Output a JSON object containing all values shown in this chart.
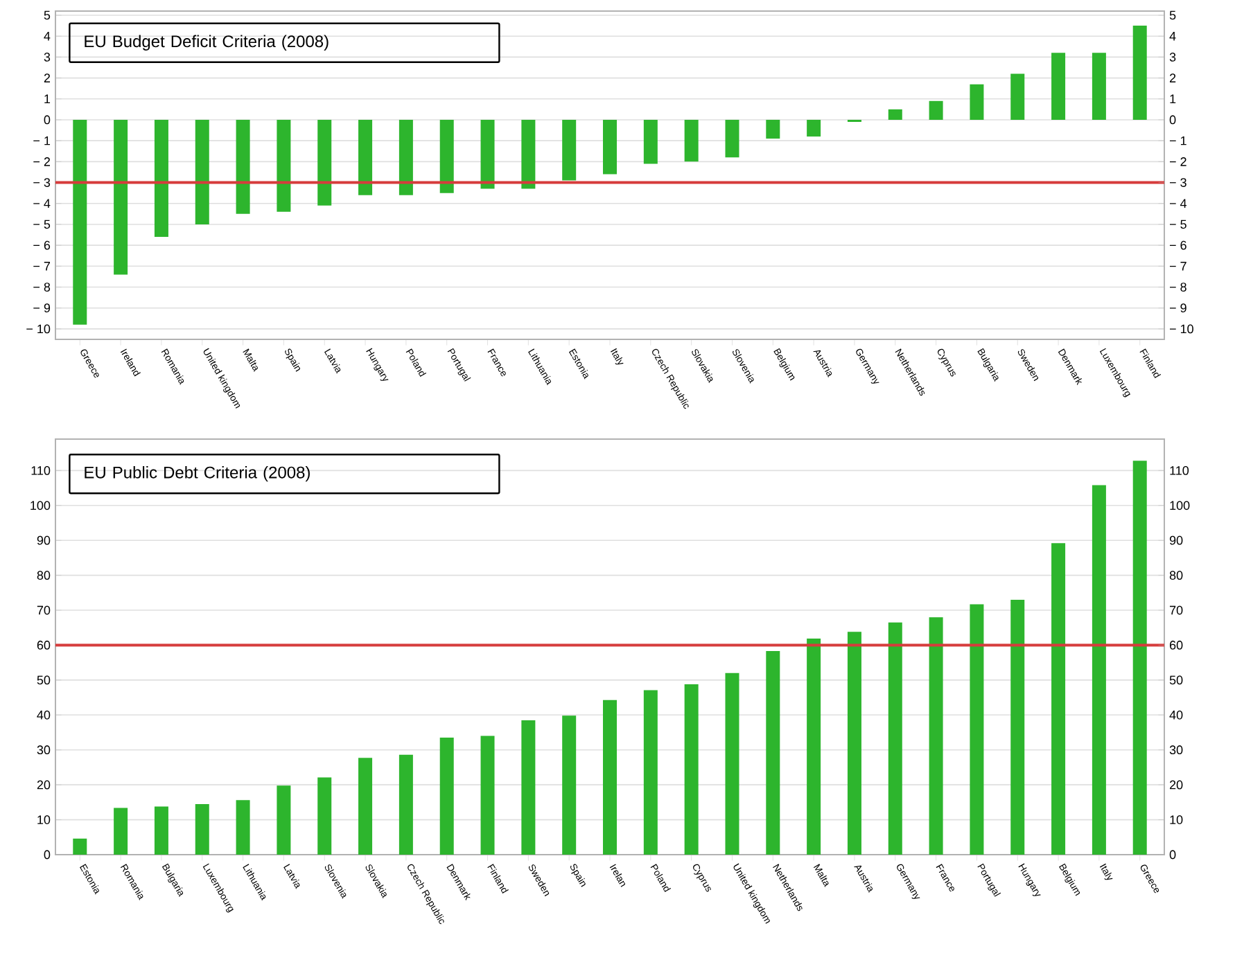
{
  "chart_data": [
    {
      "type": "bar",
      "title": "EU Budget Deficit Criteria (2008)",
      "categories": [
        "Greece",
        "Ireland",
        "Romania",
        "United kingdom",
        "Malta",
        "Spain",
        "Latvia",
        "Hungary",
        "Poland",
        "Portugal",
        "France",
        "Lithuania",
        "Estonia",
        "Italy",
        "Czech Republic",
        "Slovakia",
        "Slovenia",
        "Belgium",
        "Austria",
        "Germany",
        "Netherlands",
        "Cyprus",
        "Bulgaria",
        "Sweden",
        "Denmark",
        "Luxembourg",
        "Finland"
      ],
      "values": [
        -9.8,
        -7.4,
        -5.6,
        -5.0,
        -4.5,
        -4.4,
        -4.1,
        -3.6,
        -3.6,
        -3.5,
        -3.3,
        -3.3,
        -2.9,
        -2.6,
        -2.1,
        -2.0,
        -1.8,
        -0.9,
        -0.8,
        -0.1,
        0.5,
        0.9,
        1.7,
        2.2,
        3.2,
        3.2,
        4.5
      ],
      "color": "#2db52d",
      "grid": "y",
      "ylim": [
        -10.5,
        5.2
      ],
      "yticks": [
        {
          "value": -10,
          "label": "− 10"
        },
        {
          "value": -9,
          "label": "− 9"
        },
        {
          "value": -8,
          "label": "− 8"
        },
        {
          "value": -7,
          "label": "− 7"
        },
        {
          "value": -6,
          "label": "− 6"
        },
        {
          "value": -5,
          "label": "− 5"
        },
        {
          "value": -4,
          "label": "− 4"
        },
        {
          "value": -3,
          "label": "− 3"
        },
        {
          "value": -2,
          "label": "− 2"
        },
        {
          "value": -1,
          "label": "− 1"
        },
        0,
        1,
        2,
        3,
        4,
        5
      ],
      "y2lim": [
        -10.5,
        5.2
      ],
      "y2ticks": [
        {
          "value": -10,
          "label": "− 10"
        },
        {
          "value": -9,
          "label": "− 9"
        },
        {
          "value": -8,
          "label": "− 8"
        },
        {
          "value": -7,
          "label": "− 7"
        },
        {
          "value": -6,
          "label": "− 6"
        },
        {
          "value": -5,
          "label": "− 5"
        },
        {
          "value": -4,
          "label": "− 4"
        },
        {
          "value": -3,
          "label": "− 3"
        },
        {
          "value": -2,
          "label": "− 2"
        },
        {
          "value": -1,
          "label": "− 1"
        },
        0,
        1,
        2,
        3,
        4,
        5
      ],
      "ref_lines": [
        {
          "axis": "y",
          "value": -3,
          "color": "#d63c3c"
        }
      ]
    },
    {
      "type": "bar",
      "title": "EU Public Debt Criteria (2008)",
      "categories": [
        "Estonia",
        "Romania",
        "Bulgaria",
        "Luxembourg",
        "Lithuania",
        "Latvia",
        "Slovenia",
        "Slovakia",
        "Czech Republic",
        "Denmark",
        "Finland",
        "Sweden",
        "Spain",
        "Irelan",
        "Poland",
        "Cyprus",
        "United kingdom",
        "Netherlands",
        "Malta",
        "Austria",
        "Germany",
        "France",
        "Portugal",
        "Hungary",
        "Belgium",
        "Italy",
        "Greece"
      ],
      "values": [
        4.6,
        13.4,
        13.8,
        14.5,
        15.6,
        19.8,
        22.1,
        27.7,
        28.6,
        33.5,
        34.0,
        38.5,
        39.8,
        44.3,
        47.1,
        48.8,
        52.0,
        58.3,
        61.9,
        63.8,
        66.5,
        68.0,
        71.7,
        73.0,
        89.2,
        105.8,
        112.8
      ],
      "color": "#2db52d",
      "grid": "y",
      "ylim": [
        0,
        119
      ],
      "yticks": [
        0,
        10,
        20,
        30,
        40,
        50,
        60,
        70,
        80,
        90,
        100,
        110
      ],
      "y2lim": [
        0,
        119
      ],
      "y2ticks": [
        0,
        10,
        20,
        30,
        40,
        50,
        60,
        70,
        80,
        90,
        100,
        110
      ],
      "ref_lines": [
        {
          "axis": "y",
          "value": 60,
          "color": "#d63c3c"
        }
      ]
    }
  ]
}
